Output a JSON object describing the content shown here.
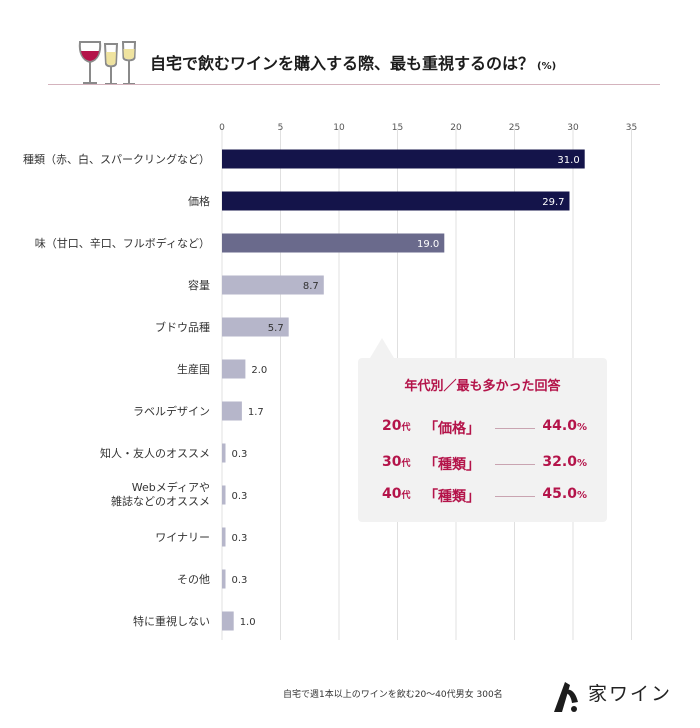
{
  "header": {
    "title": "自宅で飲むワインを購入する際、最も重視するのは？",
    "unit": "(%)"
  },
  "colors": {
    "bar_top": "#14144a",
    "bar_mid": "#6a6a8c",
    "bar_low": "#b6b6ca",
    "accent": "#b4144a",
    "grid": "#e0e0e0"
  },
  "chart_data": {
    "type": "bar",
    "orientation": "horizontal",
    "title": "自宅で飲むワインを購入する際、最も重視するのは？",
    "unit": "(%)",
    "xlim": [
      0,
      35
    ],
    "ticks": [
      "0",
      "5",
      "10",
      "15",
      "20",
      "25",
      "30",
      "35"
    ],
    "tick_values": [
      0,
      5,
      10,
      15,
      20,
      25,
      30,
      35
    ],
    "grid": true,
    "categories": [
      [
        "種類（赤、白、スパークリングなど）"
      ],
      [
        "価格"
      ],
      [
        "味（甘口、辛口、フルボディなど）"
      ],
      [
        "容量"
      ],
      [
        "ブドウ品種"
      ],
      [
        "生産国"
      ],
      [
        "ラベルデザイン"
      ],
      [
        "知人・友人のオススメ"
      ],
      [
        "Webメディアや",
        "雑誌などのオススメ"
      ],
      [
        "ワイナリー"
      ],
      [
        "その他"
      ],
      [
        "特に重視しない"
      ]
    ],
    "values": [
      31.0,
      29.7,
      19.0,
      8.7,
      5.7,
      2.0,
      1.7,
      0.3,
      0.3,
      0.3,
      0.3,
      1.0
    ],
    "value_labels": [
      "31.0",
      "29.7",
      "19.0",
      "8.7",
      "5.7",
      "2.0",
      "1.7",
      "0.3",
      "0.3",
      "0.3",
      "0.3",
      "1.0"
    ]
  },
  "callout": {
    "title": "年代別／最も多かった回答",
    "rows": [
      {
        "age": "20",
        "age_unit": "代",
        "item": "「価格」",
        "pct": "44.0",
        "pct_unit": "%"
      },
      {
        "age": "30",
        "age_unit": "代",
        "item": "「種類」",
        "pct": "32.0",
        "pct_unit": "%"
      },
      {
        "age": "40",
        "age_unit": "代",
        "item": "「種類」",
        "pct": "45.0",
        "pct_unit": "%"
      }
    ]
  },
  "footer": {
    "note": "自宅で週1本以上のワインを飲む20〜40代男女 300名",
    "brand": "家ワイン"
  }
}
